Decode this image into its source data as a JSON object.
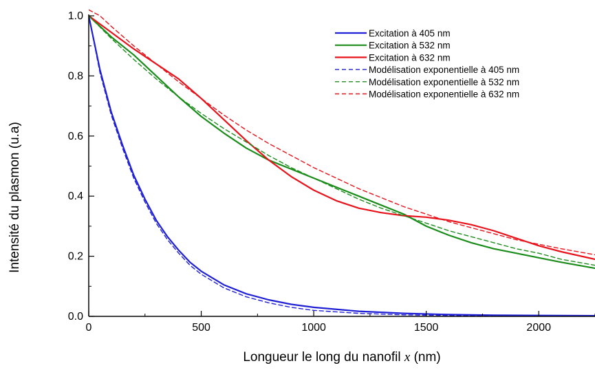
{
  "chart_data": {
    "type": "line",
    "xlabel_main": "Longueur le long du nanofil ",
    "xlabel_var": "x",
    "xlabel_unit": " (nm)",
    "ylabel": "Intensité du plasmon (u.a)",
    "xlim": [
      0,
      2250
    ],
    "ylim": [
      0,
      1.0
    ],
    "xticks": [
      0,
      500,
      1000,
      1500,
      2000
    ],
    "xtick_labels": [
      "0",
      "500",
      "1000",
      "1500",
      "2000"
    ],
    "yticks": [
      0.0,
      0.2,
      0.4,
      0.6,
      0.8,
      1.0
    ],
    "ytick_labels": [
      "0.0",
      "0.2",
      "0.4",
      "0.6",
      "0.8",
      "1.0"
    ],
    "legend_position": "top-right",
    "series": [
      {
        "name": "Excitation à 405 nm",
        "color": "#1f1fd6",
        "dash": "solid",
        "x": [
          0,
          50,
          100,
          150,
          200,
          250,
          300,
          350,
          400,
          450,
          500,
          600,
          700,
          800,
          900,
          1000,
          1200,
          1400,
          1600,
          1800,
          2000,
          2250
        ],
        "y": [
          1.0,
          0.82,
          0.68,
          0.57,
          0.47,
          0.39,
          0.32,
          0.265,
          0.22,
          0.18,
          0.15,
          0.105,
          0.075,
          0.055,
          0.04,
          0.03,
          0.017,
          0.01,
          0.006,
          0.004,
          0.003,
          0.002
        ]
      },
      {
        "name": "Excitation à 532 nm",
        "color": "#1a8c1a",
        "dash": "solid",
        "x": [
          0,
          100,
          200,
          300,
          400,
          500,
          600,
          700,
          800,
          900,
          1000,
          1100,
          1200,
          1300,
          1400,
          1500,
          1600,
          1700,
          1800,
          1900,
          2000,
          2100,
          2250
        ],
        "y": [
          1.0,
          0.93,
          0.87,
          0.8,
          0.73,
          0.665,
          0.61,
          0.56,
          0.52,
          0.49,
          0.46,
          0.43,
          0.4,
          0.37,
          0.34,
          0.3,
          0.27,
          0.245,
          0.225,
          0.21,
          0.195,
          0.18,
          0.16
        ]
      },
      {
        "name": "Excitation à 632 nm",
        "color": "#e8121b",
        "dash": "solid",
        "x": [
          0,
          100,
          200,
          300,
          400,
          500,
          600,
          700,
          800,
          900,
          1000,
          1100,
          1200,
          1300,
          1400,
          1500,
          1600,
          1700,
          1800,
          1900,
          2000,
          2100,
          2250
        ],
        "y": [
          1.0,
          0.945,
          0.89,
          0.84,
          0.79,
          0.725,
          0.655,
          0.585,
          0.52,
          0.465,
          0.42,
          0.385,
          0.36,
          0.345,
          0.335,
          0.33,
          0.32,
          0.305,
          0.285,
          0.26,
          0.235,
          0.215,
          0.19
        ]
      },
      {
        "name": "Modélisation exponentielle à 405 nm",
        "color": "#1f1fd6",
        "dash": "dashed",
        "x": [
          0,
          50,
          100,
          150,
          200,
          250,
          300,
          350,
          400,
          450,
          500,
          600,
          700,
          800,
          900,
          1000,
          1200,
          1400,
          1600,
          1800,
          2000,
          2250
        ],
        "y": [
          1.0,
          0.81,
          0.67,
          0.56,
          0.46,
          0.38,
          0.31,
          0.255,
          0.21,
          0.17,
          0.14,
          0.095,
          0.065,
          0.045,
          0.03,
          0.02,
          0.01,
          0.005,
          0.003,
          0.002,
          0.001,
          0.001
        ]
      },
      {
        "name": "Modélisation exponentielle à 532 nm",
        "color": "#1a8c1a",
        "dash": "dashed",
        "x": [
          0,
          100,
          200,
          300,
          400,
          500,
          600,
          700,
          800,
          900,
          1000,
          1100,
          1200,
          1300,
          1400,
          1500,
          1600,
          1700,
          1800,
          1900,
          2000,
          2100,
          2250
        ],
        "y": [
          1.0,
          0.925,
          0.855,
          0.79,
          0.73,
          0.675,
          0.625,
          0.58,
          0.535,
          0.495,
          0.46,
          0.425,
          0.39,
          0.36,
          0.335,
          0.31,
          0.285,
          0.265,
          0.245,
          0.225,
          0.21,
          0.19,
          0.17
        ]
      },
      {
        "name": "Modélisation exponentielle à 632 nm",
        "color": "#e8121b",
        "dash": "dashed",
        "x": [
          0,
          50,
          100,
          200,
          300,
          400,
          500,
          600,
          700,
          800,
          900,
          1000,
          1100,
          1200,
          1300,
          1400,
          1500,
          1600,
          1700,
          1800,
          1900,
          2000,
          2100,
          2250
        ],
        "y": [
          1.02,
          1.0,
          0.965,
          0.9,
          0.84,
          0.78,
          0.725,
          0.67,
          0.62,
          0.575,
          0.535,
          0.495,
          0.46,
          0.425,
          0.395,
          0.365,
          0.34,
          0.315,
          0.295,
          0.275,
          0.255,
          0.24,
          0.225,
          0.205
        ]
      }
    ]
  }
}
